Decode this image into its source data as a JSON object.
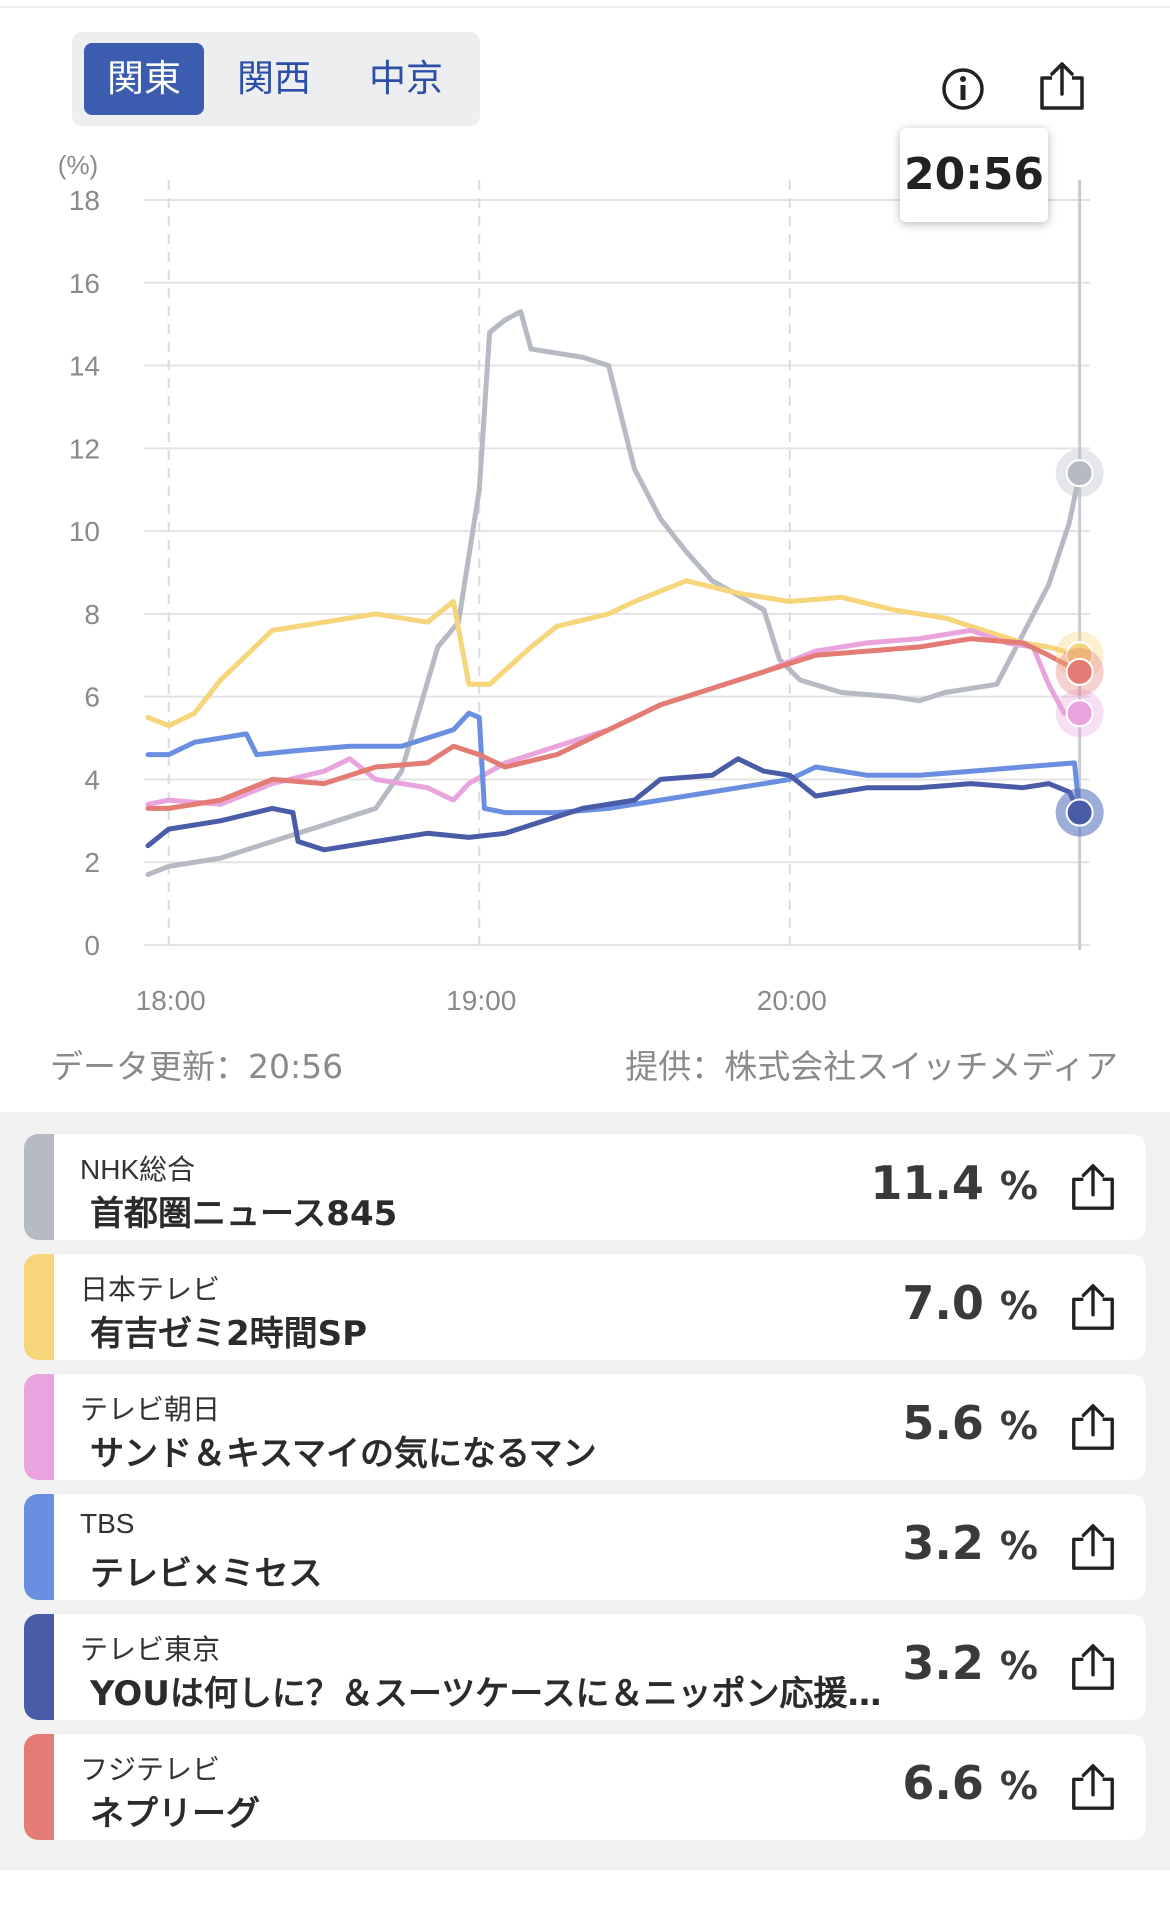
{
  "tabs": [
    {
      "label": "関東",
      "active": true
    },
    {
      "label": "関西",
      "active": false
    },
    {
      "label": "中京",
      "active": false
    }
  ],
  "tooltip_time": "20:56",
  "footer": {
    "updated": "データ更新：20:56",
    "source": "提供：株式会社スイッチメディア"
  },
  "colors": {
    "nhk": "#b6bbc3",
    "ntv": "#f6d57b",
    "tv_asahi": "#e9a4dd",
    "tbs": "#6b8fe0",
    "tv_tokyo": "#4a5ca8",
    "fuji": "#e27c75"
  },
  "chart_data": {
    "type": "line",
    "ylabel": "(%)",
    "ylim": [
      0,
      18
    ],
    "yticks": [
      0,
      2,
      4,
      6,
      8,
      10,
      12,
      14,
      16,
      18
    ],
    "xticks": [
      "18:00",
      "19:00",
      "20:00"
    ],
    "xlim": [
      "17:56",
      "20:58"
    ],
    "grid": true,
    "series": [
      {
        "name": "NHK総合",
        "color": "#b6bbc3",
        "points": [
          [
            "17:56",
            1.7
          ],
          [
            "18:00",
            1.9
          ],
          [
            "18:10",
            2.1
          ],
          [
            "18:20",
            2.5
          ],
          [
            "18:30",
            2.9
          ],
          [
            "18:40",
            3.3
          ],
          [
            "18:45",
            4.2
          ],
          [
            "18:48",
            5.5
          ],
          [
            "18:52",
            7.2
          ],
          [
            "18:56",
            7.8
          ],
          [
            "19:00",
            11.0
          ],
          [
            "19:02",
            14.8
          ],
          [
            "19:05",
            15.1
          ],
          [
            "19:08",
            15.3
          ],
          [
            "19:10",
            14.4
          ],
          [
            "19:20",
            14.2
          ],
          [
            "19:25",
            14.0
          ],
          [
            "19:30",
            11.5
          ],
          [
            "19:35",
            10.3
          ],
          [
            "19:40",
            9.5
          ],
          [
            "19:45",
            8.8
          ],
          [
            "19:55",
            8.1
          ],
          [
            "19:58",
            6.9
          ],
          [
            "20:02",
            6.4
          ],
          [
            "20:10",
            6.1
          ],
          [
            "20:20",
            6.0
          ],
          [
            "20:25",
            5.9
          ],
          [
            "20:30",
            6.1
          ],
          [
            "20:40",
            6.3
          ],
          [
            "20:45",
            7.5
          ],
          [
            "20:50",
            8.7
          ],
          [
            "20:54",
            10.2
          ],
          [
            "20:56",
            11.4
          ]
        ]
      },
      {
        "name": "日本テレビ",
        "color": "#f6d57b",
        "points": [
          [
            "17:56",
            5.5
          ],
          [
            "18:00",
            5.3
          ],
          [
            "18:05",
            5.6
          ],
          [
            "18:10",
            6.4
          ],
          [
            "18:15",
            7.0
          ],
          [
            "18:20",
            7.6
          ],
          [
            "18:30",
            7.8
          ],
          [
            "18:40",
            8.0
          ],
          [
            "18:50",
            7.8
          ],
          [
            "18:55",
            8.3
          ],
          [
            "18:58",
            6.3
          ],
          [
            "19:02",
            6.3
          ],
          [
            "19:10",
            7.2
          ],
          [
            "19:15",
            7.7
          ],
          [
            "19:25",
            8.0
          ],
          [
            "19:30",
            8.3
          ],
          [
            "19:40",
            8.8
          ],
          [
            "19:50",
            8.5
          ],
          [
            "20:00",
            8.3
          ],
          [
            "20:10",
            8.4
          ],
          [
            "20:20",
            8.1
          ],
          [
            "20:30",
            7.9
          ],
          [
            "20:40",
            7.5
          ],
          [
            "20:45",
            7.3
          ],
          [
            "20:50",
            7.2
          ],
          [
            "20:56",
            7.0
          ]
        ]
      },
      {
        "name": "テレビ朝日",
        "color": "#e9a4dd",
        "points": [
          [
            "17:56",
            3.4
          ],
          [
            "18:00",
            3.5
          ],
          [
            "18:10",
            3.4
          ],
          [
            "18:20",
            3.9
          ],
          [
            "18:30",
            4.2
          ],
          [
            "18:35",
            4.5
          ],
          [
            "18:40",
            4.0
          ],
          [
            "18:50",
            3.8
          ],
          [
            "18:55",
            3.5
          ],
          [
            "18:58",
            3.9
          ],
          [
            "19:05",
            4.4
          ],
          [
            "19:15",
            4.8
          ],
          [
            "19:25",
            5.2
          ],
          [
            "19:35",
            5.8
          ],
          [
            "19:45",
            6.2
          ],
          [
            "19:55",
            6.6
          ],
          [
            "20:05",
            7.1
          ],
          [
            "20:15",
            7.3
          ],
          [
            "20:25",
            7.4
          ],
          [
            "20:35",
            7.6
          ],
          [
            "20:42",
            7.3
          ],
          [
            "20:47",
            7.2
          ],
          [
            "20:50",
            6.3
          ],
          [
            "20:53",
            5.6
          ],
          [
            "20:56",
            5.6
          ]
        ]
      },
      {
        "name": "TBS",
        "color": "#6b8fe0",
        "points": [
          [
            "17:56",
            4.6
          ],
          [
            "18:00",
            4.6
          ],
          [
            "18:05",
            4.9
          ],
          [
            "18:10",
            5.0
          ],
          [
            "18:15",
            5.1
          ],
          [
            "18:17",
            4.6
          ],
          [
            "18:25",
            4.7
          ],
          [
            "18:35",
            4.8
          ],
          [
            "18:45",
            4.8
          ],
          [
            "18:55",
            5.2
          ],
          [
            "18:58",
            5.6
          ],
          [
            "19:00",
            5.5
          ],
          [
            "19:01",
            3.3
          ],
          [
            "19:05",
            3.2
          ],
          [
            "19:15",
            3.2
          ],
          [
            "19:25",
            3.3
          ],
          [
            "19:35",
            3.5
          ],
          [
            "19:45",
            3.7
          ],
          [
            "19:55",
            3.9
          ],
          [
            "20:00",
            4.0
          ],
          [
            "20:05",
            4.3
          ],
          [
            "20:15",
            4.1
          ],
          [
            "20:25",
            4.1
          ],
          [
            "20:35",
            4.2
          ],
          [
            "20:45",
            4.3
          ],
          [
            "20:55",
            4.4
          ],
          [
            "20:56",
            3.2
          ]
        ]
      },
      {
        "name": "テレビ東京",
        "color": "#4a5ca8",
        "points": [
          [
            "17:56",
            2.4
          ],
          [
            "18:00",
            2.8
          ],
          [
            "18:10",
            3.0
          ],
          [
            "18:20",
            3.3
          ],
          [
            "18:24",
            3.2
          ],
          [
            "18:25",
            2.5
          ],
          [
            "18:30",
            2.3
          ],
          [
            "18:40",
            2.5
          ],
          [
            "18:50",
            2.7
          ],
          [
            "18:58",
            2.6
          ],
          [
            "19:05",
            2.7
          ],
          [
            "19:10",
            2.9
          ],
          [
            "19:20",
            3.3
          ],
          [
            "19:30",
            3.5
          ],
          [
            "19:35",
            4.0
          ],
          [
            "19:45",
            4.1
          ],
          [
            "19:50",
            4.5
          ],
          [
            "19:55",
            4.2
          ],
          [
            "20:00",
            4.1
          ],
          [
            "20:05",
            3.6
          ],
          [
            "20:15",
            3.8
          ],
          [
            "20:25",
            3.8
          ],
          [
            "20:35",
            3.9
          ],
          [
            "20:45",
            3.8
          ],
          [
            "20:50",
            3.9
          ],
          [
            "20:54",
            3.7
          ],
          [
            "20:56",
            3.2
          ]
        ]
      },
      {
        "name": "フジテレビ",
        "color": "#e27c75",
        "points": [
          [
            "17:56",
            3.3
          ],
          [
            "18:00",
            3.3
          ],
          [
            "18:10",
            3.5
          ],
          [
            "18:20",
            4.0
          ],
          [
            "18:30",
            3.9
          ],
          [
            "18:40",
            4.3
          ],
          [
            "18:50",
            4.4
          ],
          [
            "18:55",
            4.8
          ],
          [
            "19:00",
            4.6
          ],
          [
            "19:05",
            4.3
          ],
          [
            "19:15",
            4.6
          ],
          [
            "19:25",
            5.2
          ],
          [
            "19:35",
            5.8
          ],
          [
            "19:45",
            6.2
          ],
          [
            "19:55",
            6.6
          ],
          [
            "20:05",
            7.0
          ],
          [
            "20:15",
            7.1
          ],
          [
            "20:25",
            7.2
          ],
          [
            "20:35",
            7.4
          ],
          [
            "20:45",
            7.3
          ],
          [
            "20:50",
            7.0
          ],
          [
            "20:56",
            6.6
          ]
        ]
      }
    ]
  },
  "programs": [
    {
      "channel": "NHK総合",
      "title": "首都圏ニュース845",
      "rating": "11.4",
      "unit": "%",
      "color": "#b6bbc3"
    },
    {
      "channel": "日本テレビ",
      "title": "有吉ゼミ2時間SP",
      "rating": "7.0",
      "unit": "%",
      "color": "#f6d57b"
    },
    {
      "channel": "テレビ朝日",
      "title": "サンド＆キスマイの気になるマン",
      "rating": "5.6",
      "unit": "%",
      "color": "#e9a4dd"
    },
    {
      "channel": "TBS",
      "title": "テレビ×ミセス",
      "rating": "3.2",
      "unit": "%",
      "color": "#6b8fe0"
    },
    {
      "channel": "テレビ東京",
      "title": "YOUは何しに？＆スーツケースに＆ニッポン応援したい外国人",
      "rating": "3.2",
      "unit": "%",
      "color": "#4a5ca8"
    },
    {
      "channel": "フジテレビ",
      "title": "ネプリーグ",
      "rating": "6.6",
      "unit": "%",
      "color": "#e27c75"
    }
  ]
}
